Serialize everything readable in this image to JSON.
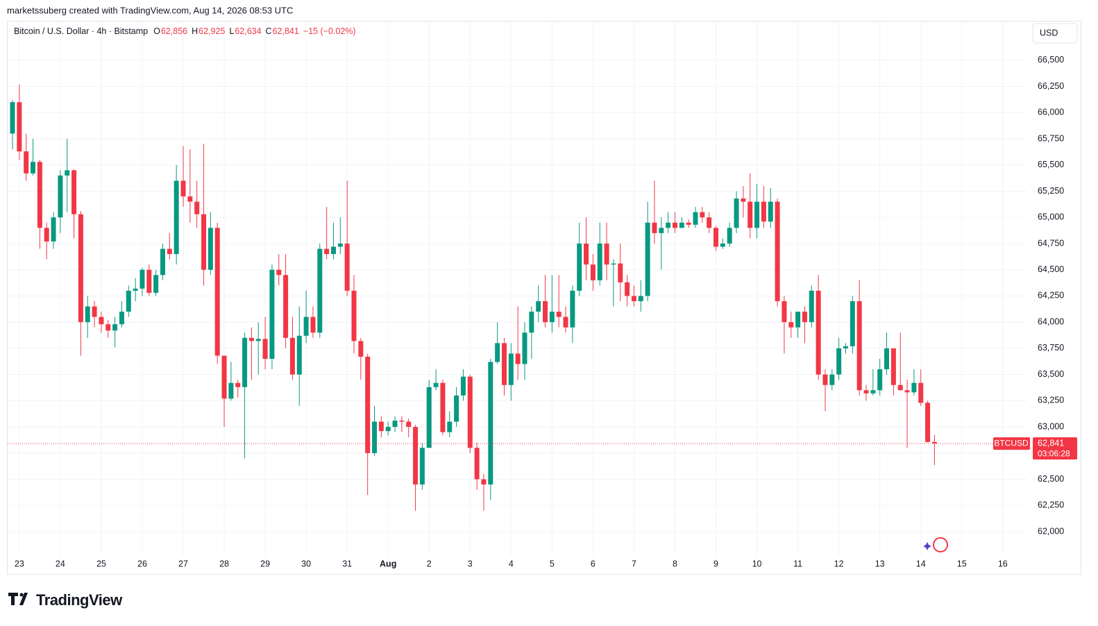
{
  "attribution": "marketssuberg created with TradingView.com, Aug 14, 2026 08:53 UTC",
  "brand": "TradingView",
  "legend": {
    "title": "Bitcoin / U.S. Dollar · 4h · Bitstamp",
    "fields": [
      {
        "key": "O",
        "value": "62,856"
      },
      {
        "key": "H",
        "value": "62,925"
      },
      {
        "key": "L",
        "value": "62,634"
      },
      {
        "key": "C",
        "value": "62,841"
      }
    ],
    "change": "−15 (−0.02%)"
  },
  "currency": "USD",
  "last_price": {
    "symbol_label": "BTCUSD",
    "price_label": "62,841",
    "countdown": "03:06:28"
  },
  "chart_data": {
    "type": "candlestick",
    "up_color": "#089981",
    "down_color": "#f23645",
    "grid": true,
    "categories": [
      null,
      "23",
      null,
      null,
      null,
      null,
      null,
      "24",
      null,
      null,
      null,
      null,
      null,
      "25",
      null,
      null,
      null,
      null,
      null,
      "26",
      null,
      null,
      null,
      null,
      null,
      "27",
      null,
      null,
      null,
      null,
      null,
      "28",
      null,
      null,
      null,
      null,
      null,
      "29",
      null,
      null,
      null,
      null,
      null,
      "30",
      null,
      null,
      null,
      null,
      null,
      "31",
      null,
      null,
      null,
      null,
      null,
      "Aug",
      null,
      null,
      null,
      null,
      null,
      "2",
      null,
      null,
      null,
      null,
      null,
      "3",
      null,
      null,
      null,
      null,
      null,
      "4",
      null,
      null,
      null,
      null,
      null,
      "5",
      null,
      null,
      null,
      null,
      null,
      "6",
      null,
      null,
      null,
      null,
      null,
      "7",
      null,
      null,
      null,
      null,
      null,
      "8",
      null,
      null,
      null,
      null,
      null,
      "9",
      null,
      null,
      null,
      null,
      null,
      "10",
      null,
      null,
      null,
      null,
      null,
      "11",
      null,
      null,
      null,
      null,
      null,
      "12",
      null,
      null,
      null,
      null,
      null,
      "13",
      null,
      null,
      null,
      null,
      null,
      "14",
      null,
      null,
      null,
      null,
      null,
      "15",
      null,
      null,
      null,
      null,
      null,
      "16"
    ],
    "open": [
      65800,
      66100,
      65630,
      65420,
      65530,
      64900,
      64770,
      65000,
      65400,
      65450,
      65030,
      64000,
      64150,
      64050,
      63980,
      63920,
      63980,
      64100,
      64300,
      64320,
      64500,
      64280,
      64450,
      64700,
      64650,
      65350,
      65200,
      65150,
      65030,
      64500,
      64900,
      63680,
      63270,
      63420,
      63380,
      63850,
      63820,
      63840,
      63650,
      64500,
      64450,
      63850,
      63500,
      63870,
      64050,
      63900,
      64700,
      64650,
      64720,
      64750,
      64300,
      63820,
      63670,
      62750,
      63050,
      62960,
      63000,
      63060,
      63050,
      63000,
      62450,
      62800,
      63380,
      63420,
      62950,
      63050,
      63300,
      63480,
      62800,
      62500,
      62450,
      63620,
      63800,
      63400,
      63700,
      63600,
      63900,
      64100,
      64200,
      64000,
      64100,
      64050,
      63950,
      64300,
      64750,
      64550,
      64400,
      64750,
      64550,
      64560,
      64380,
      64250,
      64200,
      64250,
      64950,
      64850,
      64900,
      64950,
      64900,
      64950,
      64930,
      65050,
      65000,
      64900,
      64720,
      64750,
      64900,
      65180,
      65150,
      64900,
      65150,
      64960,
      65150,
      64200,
      64000,
      63950,
      64100,
      64000,
      64300,
      63500,
      63400,
      63500,
      63750,
      63770,
      64200,
      63350,
      63320,
      63350,
      63550,
      63750,
      63400,
      63350,
      63330,
      63420,
      63230,
      62856,
      null,
      null,
      null,
      null,
      null,
      null,
      null,
      null,
      null,
      null
    ],
    "high": [
      66120,
      66270,
      65800,
      65750,
      65550,
      64950,
      65050,
      65450,
      65750,
      65460,
      65060,
      64250,
      64200,
      64100,
      64020,
      64050,
      64200,
      64350,
      64420,
      64520,
      64550,
      64500,
      64750,
      64850,
      65500,
      65680,
      65650,
      65350,
      65700,
      65050,
      64950,
      63680,
      63620,
      63450,
      63900,
      63950,
      64000,
      64050,
      64550,
      64650,
      64650,
      64050,
      64150,
      64300,
      64150,
      64750,
      65100,
      64950,
      65000,
      65350,
      64450,
      63850,
      63700,
      63200,
      63100,
      63050,
      63100,
      63100,
      63080,
      63020,
      62850,
      63450,
      63550,
      63450,
      63150,
      63380,
      63550,
      63500,
      62850,
      62550,
      63650,
      64000,
      63850,
      63800,
      64150,
      64000,
      64150,
      64350,
      64450,
      64450,
      64450,
      64150,
      64350,
      64950,
      65000,
      64650,
      64950,
      64950,
      64600,
      64750,
      64450,
      64350,
      64400,
      65150,
      65350,
      65000,
      65050,
      65050,
      65000,
      64980,
      65100,
      65100,
      65050,
      64920,
      64800,
      64950,
      65250,
      65300,
      65420,
      65320,
      65300,
      65280,
      65180,
      64250,
      64100,
      64100,
      64150,
      64350,
      64450,
      63550,
      63550,
      63850,
      63800,
      64250,
      64400,
      63400,
      63550,
      63650,
      63900,
      63750,
      63900,
      63450,
      63550,
      63550,
      63250,
      62925,
      null,
      null,
      null,
      null,
      null,
      null,
      null,
      null,
      null,
      null
    ],
    "low": [
      65650,
      65550,
      65350,
      65400,
      64700,
      64600,
      64700,
      64850,
      65050,
      64800,
      63680,
      63850,
      63950,
      63900,
      63850,
      63760,
      63950,
      64050,
      64200,
      64250,
      64250,
      64250,
      64400,
      64600,
      64550,
      65100,
      64950,
      64900,
      64350,
      64450,
      63600,
      63000,
      63250,
      63280,
      62700,
      63450,
      63500,
      63550,
      63550,
      64350,
      63750,
      63450,
      63200,
      63800,
      63850,
      63850,
      64600,
      64600,
      64650,
      64250,
      63700,
      63450,
      62350,
      62720,
      62900,
      62920,
      62950,
      62950,
      62900,
      62200,
      62400,
      62800,
      63350,
      62920,
      62900,
      63000,
      63250,
      62750,
      62400,
      62200,
      62300,
      63600,
      63300,
      63250,
      63450,
      63450,
      63650,
      64000,
      63950,
      63900,
      63950,
      63900,
      63800,
      64250,
      64400,
      64300,
      64350,
      64400,
      64150,
      64200,
      64150,
      64150,
      64100,
      64200,
      64750,
      64500,
      64850,
      64850,
      64900,
      64900,
      64900,
      64950,
      64850,
      64680,
      64700,
      64720,
      64850,
      65000,
      64800,
      64800,
      64900,
      64900,
      64150,
      63700,
      63850,
      63850,
      63800,
      63950,
      63450,
      63150,
      63350,
      63450,
      63700,
      63700,
      63300,
      63250,
      63300,
      63300,
      63500,
      63300,
      63350,
      62800,
      63300,
      63200,
      62850,
      62634,
      null,
      null,
      null,
      null,
      null,
      null,
      null,
      null,
      null,
      null
    ],
    "close": [
      66100,
      65630,
      65420,
      65530,
      64900,
      64770,
      65000,
      65400,
      65450,
      65030,
      64000,
      64150,
      64050,
      63980,
      63920,
      63980,
      64100,
      64300,
      64320,
      64500,
      64280,
      64450,
      64700,
      64650,
      65350,
      65200,
      65150,
      65030,
      64500,
      64900,
      63680,
      63270,
      63420,
      63380,
      63850,
      63820,
      63840,
      63650,
      64500,
      64450,
      63850,
      63500,
      63870,
      64050,
      63900,
      64700,
      64650,
      64720,
      64750,
      64300,
      63820,
      63670,
      62750,
      63050,
      62960,
      63000,
      63060,
      63050,
      63000,
      62450,
      62800,
      63380,
      63420,
      62950,
      63050,
      63300,
      63480,
      62800,
      62500,
      62450,
      63620,
      63800,
      63400,
      63700,
      63600,
      63900,
      64100,
      64200,
      64000,
      64100,
      64050,
      63950,
      64300,
      64750,
      64550,
      64400,
      64750,
      64550,
      64560,
      64380,
      64250,
      64200,
      64250,
      64950,
      64850,
      64900,
      64950,
      64900,
      64950,
      64930,
      65050,
      65000,
      64900,
      64720,
      64750,
      64900,
      65180,
      65150,
      64900,
      65150,
      64960,
      65150,
      64200,
      64000,
      63950,
      64100,
      64000,
      64300,
      63500,
      63400,
      63500,
      63750,
      63770,
      64200,
      63350,
      63320,
      63350,
      63550,
      63750,
      63400,
      63350,
      63330,
      63420,
      63230,
      62856,
      62841,
      null,
      null,
      null,
      null,
      null,
      null,
      null,
      null,
      null,
      null
    ],
    "ylim": [
      61775,
      66870
    ],
    "yticks": [
      {
        "value": 62000,
        "label": "62,000"
      },
      {
        "value": 62250,
        "label": "62,250"
      },
      {
        "value": 62500,
        "label": "62,500"
      },
      {
        "value": 62750,
        "label": "62,750"
      },
      {
        "value": 63000,
        "label": "63,000"
      },
      {
        "value": 63250,
        "label": "63,250"
      },
      {
        "value": 63500,
        "label": "63,500"
      },
      {
        "value": 63750,
        "label": "63,750"
      },
      {
        "value": 64000,
        "label": "64,000"
      },
      {
        "value": 64250,
        "label": "64,250"
      },
      {
        "value": 64500,
        "label": "64,500"
      },
      {
        "value": 64750,
        "label": "64,750"
      },
      {
        "value": 65000,
        "label": "65,000"
      },
      {
        "value": 65250,
        "label": "65,250"
      },
      {
        "value": 65500,
        "label": "65,500"
      },
      {
        "value": 65750,
        "label": "65,750"
      },
      {
        "value": 66000,
        "label": "66,000"
      },
      {
        "value": 66250,
        "label": "66,250"
      },
      {
        "value": 66500,
        "label": "66,500"
      }
    ]
  }
}
